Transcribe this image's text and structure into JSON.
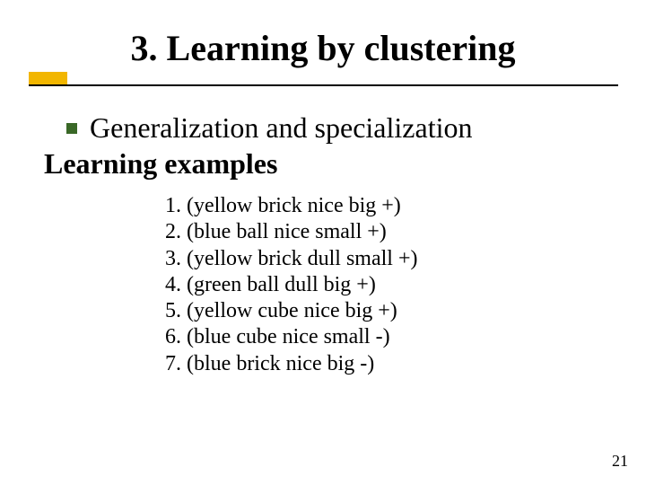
{
  "slide": {
    "title": "3. Learning by clustering",
    "bullet": "Generalization and specialization",
    "subheading": "Learning examples",
    "examples": [
      "1. (yellow brick nice big +)",
      "2. (blue ball nice small +)",
      "3. (yellow brick dull small +)",
      "4. (green ball dull big +)",
      "5. (yellow cube nice big +)",
      "6. (blue cube nice small -)",
      "7. (blue brick nice big -)"
    ],
    "page_number": "21"
  },
  "style": {
    "title_fontsize": 40,
    "body_fontsize": 32,
    "examples_fontsize": 24,
    "pagenum_fontsize": 18,
    "text_color": "#000000",
    "background_color": "#ffffff",
    "accent_color": "#f2b600",
    "bullet_color": "#3a6827",
    "underline_color": "#000000",
    "font_family": "Times New Roman"
  }
}
